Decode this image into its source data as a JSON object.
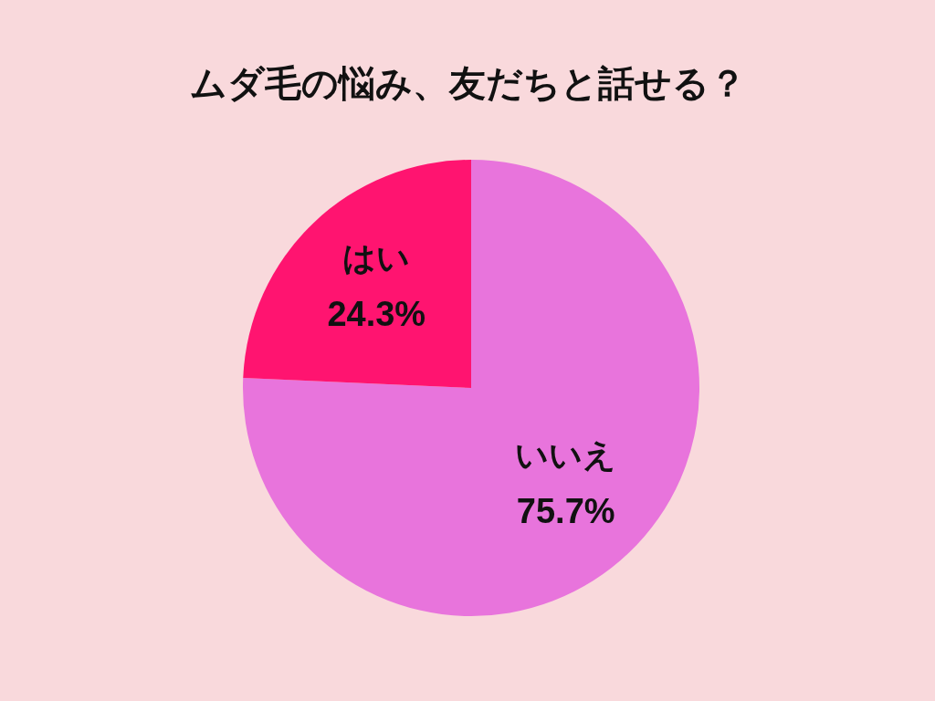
{
  "chart_data": {
    "type": "pie",
    "title": "ムダ毛の悩み、友だちと話せる？",
    "categories": [
      "いいえ",
      "はい"
    ],
    "values": [
      75.7,
      24.3
    ],
    "value_labels": [
      "75.7%",
      "24.3%"
    ],
    "colors": [
      "#e874dc",
      "#ff1470"
    ]
  }
}
